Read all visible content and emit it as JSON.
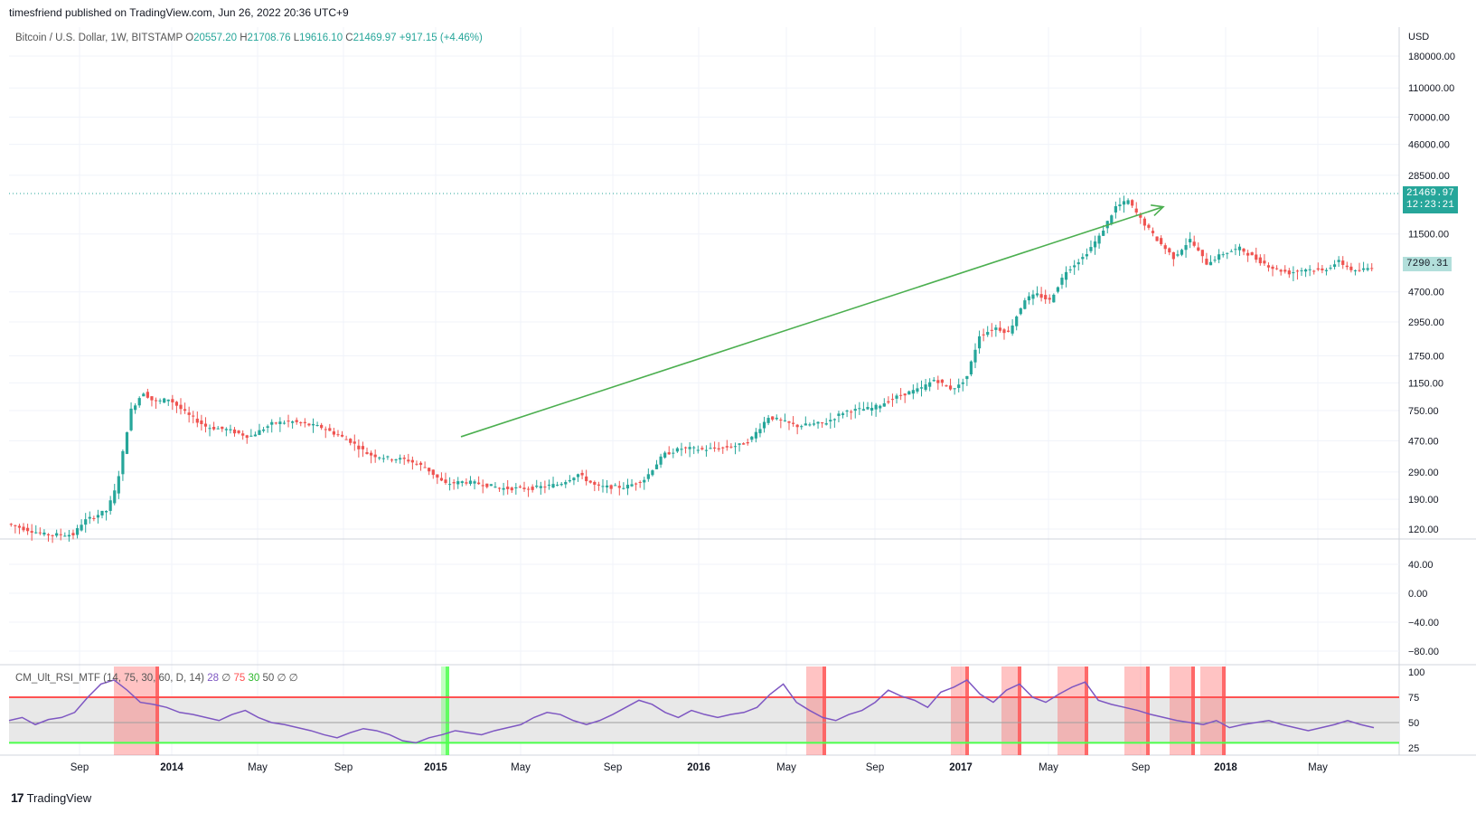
{
  "header": {
    "published": "timesfriend published on TradingView.com, Jun 26, 2022 20:36 UTC+9"
  },
  "symbol": {
    "name": "Bitcoin / U.S. Dollar, 1W, BITSTAMP",
    "open_label": "O",
    "open": "20557.20",
    "high_label": "H",
    "high": "21708.76",
    "low_label": "L",
    "low": "19616.10",
    "close_label": "C",
    "close": "21469.97",
    "change": "+917.15 (+4.46%)"
  },
  "indicator": {
    "name": "CM_Ult_RSI_MTF (14, 75, 30, 60, D, 14)",
    "v1": "28",
    "v2": "∅",
    "v3": "75",
    "v4": "30",
    "v5": "50",
    "v6": "∅",
    "v7": "∅"
  },
  "price_axis": {
    "currency": "USD",
    "labels": [
      "180000.00",
      "110000.00",
      "70000.00",
      "46000.00",
      "28500.00",
      "11500.00",
      "4700.00",
      "2950.00",
      "1750.00",
      "1150.00",
      "750.00",
      "470.00",
      "290.00",
      "190.00",
      "120.00"
    ],
    "last_price": "21469.97",
    "countdown": "12:23:21",
    "marker_price": "7290.31"
  },
  "osc_axis": {
    "labels": [
      "40.00",
      "0.00",
      "−40.00",
      "−80.00"
    ]
  },
  "rsi_axis": {
    "labels": [
      "100",
      "75",
      "50",
      "25"
    ]
  },
  "time_axis": {
    "labels": [
      "Sep",
      "2014",
      "May",
      "Sep",
      "2015",
      "May",
      "Sep",
      "2016",
      "May",
      "Sep",
      "2017",
      "May",
      "Sep",
      "2018",
      "May"
    ]
  },
  "footer": {
    "brand": "TradingView",
    "logo": "17"
  },
  "colors": {
    "up": "#26a69a",
    "down": "#ef5350",
    "arrow": "#4caf50",
    "rsi": "#7e57c2",
    "overbought": "#ff5252",
    "oversold": "#4cff4c"
  },
  "chart_data": {
    "type": "candlestick",
    "title": "Bitcoin / U.S. Dollar, 1W, BITSTAMP",
    "scale": "log",
    "ylim": [
      100,
      250000
    ],
    "price_path": [
      [
        0,
        130
      ],
      [
        0.04,
        110
      ],
      [
        0.07,
        110
      ],
      [
        0.08,
        135
      ],
      [
        0.105,
        160
      ],
      [
        0.115,
        230
      ],
      [
        0.13,
        750
      ],
      [
        0.143,
        1000
      ],
      [
        0.155,
        850
      ],
      [
        0.17,
        900
      ],
      [
        0.19,
        700
      ],
      [
        0.21,
        580
      ],
      [
        0.23,
        560
      ],
      [
        0.255,
        500
      ],
      [
        0.28,
        620
      ],
      [
        0.3,
        630
      ],
      [
        0.33,
        580
      ],
      [
        0.36,
        470
      ],
      [
        0.38,
        380
      ],
      [
        0.4,
        360
      ],
      [
        0.42,
        350
      ],
      [
        0.44,
        310
      ],
      [
        0.46,
        240
      ],
      [
        0.48,
        250
      ],
      [
        0.5,
        240
      ],
      [
        0.52,
        225
      ],
      [
        0.55,
        225
      ],
      [
        0.58,
        240
      ],
      [
        0.6,
        280
      ],
      [
        0.62,
        230
      ],
      [
        0.65,
        230
      ],
      [
        0.67,
        260
      ],
      [
        0.69,
        380
      ],
      [
        0.71,
        420
      ],
      [
        0.73,
        410
      ],
      [
        0.75,
        420
      ],
      [
        0.77,
        440
      ],
      [
        0.78,
        470
      ],
      [
        0.8,
        680
      ],
      [
        0.83,
        590
      ],
      [
        0.86,
        620
      ],
      [
        0.88,
        740
      ],
      [
        0.91,
        780
      ],
      [
        0.94,
        960
      ],
      [
        0.96,
        1050
      ],
      [
        0.975,
        1220
      ],
      [
        0.99,
        1050
      ],
      [
        1.0,
        1100
      ]
    ],
    "price_path_2": [
      [
        0,
        1100
      ],
      [
        0.02,
        1280
      ],
      [
        0.05,
        2400
      ],
      [
        0.09,
        2700
      ],
      [
        0.12,
        2500
      ],
      [
        0.16,
        4200
      ],
      [
        0.19,
        4500
      ],
      [
        0.22,
        4100
      ],
      [
        0.26,
        6500
      ],
      [
        0.3,
        8000
      ],
      [
        0.34,
        11000
      ],
      [
        0.38,
        17500
      ],
      [
        0.41,
        19200
      ],
      [
        0.44,
        14500
      ],
      [
        0.48,
        10500
      ],
      [
        0.52,
        8000
      ],
      [
        0.56,
        10500
      ],
      [
        0.6,
        7300
      ],
      [
        0.64,
        8500
      ],
      [
        0.68,
        9200
      ],
      [
        0.72,
        7800
      ],
      [
        0.76,
        6800
      ],
      [
        0.8,
        6300
      ],
      [
        0.84,
        6700
      ],
      [
        0.88,
        6500
      ],
      [
        0.92,
        7500
      ],
      [
        0.96,
        6400
      ],
      [
        1.0,
        6900
      ]
    ],
    "arrow": {
      "from_price": 500,
      "to_price": 17500
    },
    "rsi_series": [
      52,
      55,
      48,
      53,
      55,
      60,
      75,
      88,
      92,
      82,
      70,
      68,
      65,
      60,
      58,
      55,
      52,
      58,
      62,
      55,
      50,
      48,
      45,
      42,
      38,
      35,
      40,
      44,
      42,
      38,
      32,
      30,
      35,
      38,
      42,
      40,
      38,
      42,
      45,
      48,
      55,
      60,
      58,
      52,
      48,
      52,
      58,
      65,
      72,
      68,
      60,
      55,
      62,
      58,
      55,
      58,
      60,
      65,
      78,
      88,
      70,
      62,
      55,
      52,
      58,
      62,
      70,
      82,
      76,
      72,
      65,
      80,
      85,
      92,
      78,
      70,
      82,
      88,
      75,
      70,
      78,
      85,
      90,
      72,
      68,
      65,
      62,
      58,
      55,
      52,
      50,
      48,
      52,
      45,
      48,
      50,
      52,
      48,
      45,
      42,
      45,
      48,
      52,
      48,
      45
    ],
    "rsi_levels": {
      "overbought": 75,
      "oversold": 30,
      "mid": 50
    }
  }
}
